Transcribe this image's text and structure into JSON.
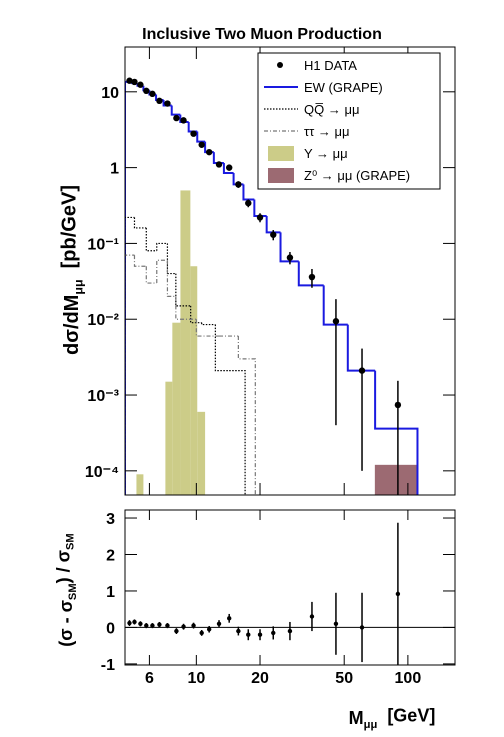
{
  "chart_data": [
    {
      "type": "histogram",
      "title": "Inclusive Two Muon Production",
      "y_label": [
        "dσ/dM",
        "μμ",
        "  [pb/GeV]"
      ],
      "xlog": true,
      "ylog": true,
      "xlim": [
        4.6,
        167
      ],
      "ylim": [
        4.8e-05,
        39
      ],
      "yticks": [
        10,
        1,
        {
          "value": 0.1,
          "label": "10⁻¹"
        },
        {
          "value": 0.01,
          "label": "10⁻²"
        },
        {
          "value": 0.001,
          "label": "10⁻³"
        },
        {
          "value": 0.0001,
          "label": "10⁻⁴"
        }
      ],
      "legend": "upper right",
      "series": [
        {
          "name": "H1 DATA",
          "kind": "points",
          "color": "#000000",
          "x": [
            4.83,
            5.1,
            5.44,
            5.8,
            6.2,
            6.69,
            7.3,
            8.05,
            8.7,
            9.7,
            10.6,
            11.5,
            12.8,
            14.3,
            15.8,
            17.6,
            20.0,
            23.1,
            27.7,
            35.2,
            45.7,
            60.7,
            89.7
          ],
          "values": [
            14,
            13.5,
            12.4,
            10.3,
            9.4,
            7.6,
            7.0,
            4.5,
            4.2,
            2.8,
            2.0,
            1.6,
            1.1,
            1.0,
            0.6,
            0.34,
            0.22,
            0.13,
            0.065,
            0.036,
            0.0094,
            0.0021,
            0.00074
          ],
          "errors": [
            0.8,
            0.8,
            0.7,
            0.6,
            0.6,
            0.5,
            0.5,
            0.35,
            0.3,
            0.22,
            0.16,
            0.13,
            0.09,
            0.09,
            0.06,
            0.04,
            0.03,
            0.02,
            0.012,
            0.01,
            0.009,
            0.002,
            0.0008
          ]
        },
        {
          "name": "EW (GRAPE)",
          "kind": "step",
          "color": "#1a1ae0",
          "dash": "none",
          "bins": [
            4.6,
            4.97,
            5.27,
            5.62,
            6.0,
            6.45,
            7.0,
            7.65,
            8.4,
            9.2,
            10.1,
            11.0,
            12.1,
            13.5,
            15.0,
            16.7,
            18.8,
            21.5,
            25.0,
            30.5,
            40.0,
            52.0,
            70.0,
            111.0
          ],
          "values": [
            13.5,
            13,
            12,
            10.5,
            9.2,
            7.8,
            6.6,
            5.0,
            4.0,
            3.0,
            2.2,
            1.6,
            1.15,
            0.85,
            0.6,
            0.38,
            0.23,
            0.14,
            0.058,
            0.028,
            0.0085,
            0.0021,
            0.00036
          ]
        },
        {
          "name": "QQ̅ → μμ",
          "kind": "step",
          "color": "#000000",
          "dash": "1.5,1.5",
          "bins": [
            4.6,
            5.1,
            5.8,
            6.5,
            7.3,
            8.0,
            9.4,
            10.6,
            12.3,
            14.3,
            17.0
          ],
          "values": [
            0.22,
            0.16,
            0.08,
            0.1,
            0.04,
            0.015,
            0.009,
            0.0085,
            0.0021,
            0.0021
          ]
        },
        {
          "name": "ττ → μμ",
          "kind": "step",
          "color": "#777777",
          "dash": "4,2,1,2",
          "bins": [
            4.6,
            5.1,
            5.8,
            6.5,
            7.3,
            8.0,
            10.0,
            12.8,
            15.8,
            19.0
          ],
          "values": [
            0.07,
            0.05,
            0.03,
            0.06,
            0.02,
            0.01,
            0.006,
            0.006,
            0.003
          ]
        },
        {
          "name": "Υ → μμ",
          "kind": "bars",
          "color": "#cccc88",
          "bins": [
            5.21,
            5.62,
            7.14,
            7.7,
            8.41,
            9.37,
            10.1,
            11.0
          ],
          "values": [
            9e-05,
            null,
            0.0015,
            0.009,
            0.5,
            0.05,
            0.0006
          ]
        },
        {
          "name": "Z⁰ → μμ (GRAPE)",
          "kind": "bars",
          "color": "#9c6a72",
          "bins": [
            69.8,
            111.0
          ],
          "values": [
            0.00012
          ]
        }
      ]
    },
    {
      "type": "scatter",
      "y_label": [
        "(σ - σ",
        "SM",
        ") / σ",
        "SM"
      ],
      "x_label": [
        "M",
        "μμ",
        "  [GeV]"
      ],
      "xlog": true,
      "xlim": [
        4.6,
        167
      ],
      "ylim": [
        -1.03,
        3.22
      ],
      "xticks": [
        6,
        10,
        20,
        50,
        100
      ],
      "yticks": [
        -1,
        0,
        1,
        2,
        3
      ],
      "reference": 0,
      "color": "#000000",
      "x": [
        4.83,
        5.1,
        5.44,
        5.8,
        6.2,
        6.69,
        7.3,
        8.05,
        8.7,
        9.7,
        10.6,
        11.5,
        12.8,
        14.3,
        15.8,
        17.6,
        20.0,
        23.1,
        27.7,
        35.2,
        45.7,
        60.7,
        89.7
      ],
      "values": [
        0.12,
        0.15,
        0.1,
        0.05,
        0.05,
        0.08,
        0.05,
        -0.1,
        0.02,
        0.05,
        -0.15,
        -0.05,
        0.1,
        0.25,
        -0.1,
        -0.2,
        -0.2,
        -0.15,
        -0.1,
        0.3,
        0.1,
        0.0,
        0.92
      ],
      "errors": [
        0.08,
        0.07,
        0.07,
        0.07,
        0.07,
        0.07,
        0.07,
        0.08,
        0.08,
        0.08,
        0.08,
        0.09,
        0.1,
        0.12,
        0.12,
        0.15,
        0.15,
        0.18,
        0.25,
        0.4,
        0.85,
        0.95,
        1.95
      ]
    }
  ]
}
